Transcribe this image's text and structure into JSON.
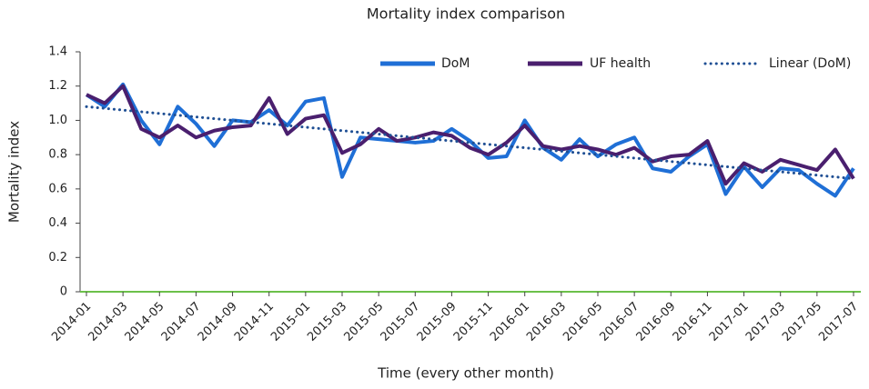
{
  "chart_data": {
    "type": "line",
    "title": "Mortality index comparison",
    "x_label": "Time (every other month)",
    "y_label": "Mortality index",
    "categories": [
      "2014-01",
      null,
      "2014-03",
      null,
      "2014-05",
      null,
      "2014-07",
      null,
      "2014-09",
      null,
      "2014-11",
      null,
      "2015-01",
      null,
      "2015-03",
      null,
      "2015-05",
      null,
      "2015-07",
      null,
      "2015-09",
      null,
      "2015-11",
      null,
      "2016-01",
      null,
      "2016-03",
      null,
      "2016-05",
      null,
      "2016-07",
      null,
      "2016-09",
      null,
      "2016-11",
      null,
      "2017-01",
      null,
      "2017-03",
      null,
      "2017-05",
      null,
      "2017-07"
    ],
    "series": [
      {
        "name": "DoM",
        "color": "#1f6fd6",
        "style": "solid",
        "values": [
          1.15,
          1.08,
          1.21,
          1.0,
          0.86,
          1.08,
          0.98,
          0.85,
          1.0,
          0.99,
          1.06,
          0.97,
          1.11,
          1.13,
          0.67,
          0.9,
          0.89,
          0.88,
          0.87,
          0.88,
          0.95,
          0.88,
          0.78,
          0.79,
          1.0,
          0.84,
          0.77,
          0.89,
          0.79,
          0.86,
          0.9,
          0.72,
          0.7,
          0.79,
          0.86,
          0.57,
          0.73,
          0.61,
          0.72,
          0.71,
          0.63,
          0.56,
          0.72
        ]
      },
      {
        "name": "UF health",
        "color": "#4a1f6e",
        "style": "solid",
        "values": [
          1.15,
          1.1,
          1.2,
          0.95,
          0.9,
          0.97,
          0.9,
          0.94,
          0.96,
          0.97,
          1.13,
          0.92,
          1.01,
          1.03,
          0.81,
          0.86,
          0.95,
          0.88,
          0.9,
          0.93,
          0.91,
          0.84,
          0.8,
          0.87,
          0.97,
          0.85,
          0.83,
          0.85,
          0.83,
          0.8,
          0.84,
          0.76,
          0.79,
          0.8,
          0.88,
          0.63,
          0.75,
          0.7,
          0.77,
          0.74,
          0.71,
          0.83,
          0.66
        ]
      },
      {
        "name": "Linear (DoM)",
        "color": "#1f4f94",
        "style": "dotted",
        "values": [
          1.08,
          1.07,
          1.06,
          1.05,
          1.04,
          1.03,
          1.02,
          1.01,
          1.0,
          0.99,
          0.98,
          0.97,
          0.96,
          0.95,
          0.94,
          0.93,
          0.92,
          0.91,
          0.9,
          0.89,
          0.88,
          0.87,
          0.86,
          0.85,
          0.84,
          0.83,
          0.82,
          0.81,
          0.8,
          0.79,
          0.78,
          0.77,
          0.76,
          0.75,
          0.74,
          0.73,
          0.72,
          0.71,
          0.7,
          0.69,
          0.68,
          0.67,
          0.66
        ]
      }
    ],
    "ylim": [
      0,
      1.4
    ],
    "yticks": [
      0,
      0.2,
      0.4,
      0.6,
      0.8,
      {
        "value": 1,
        "label": "1.0"
      },
      1.2,
      1.4
    ],
    "grid": false,
    "legend": "top-right",
    "x_axis_color": "#6cc04a"
  }
}
